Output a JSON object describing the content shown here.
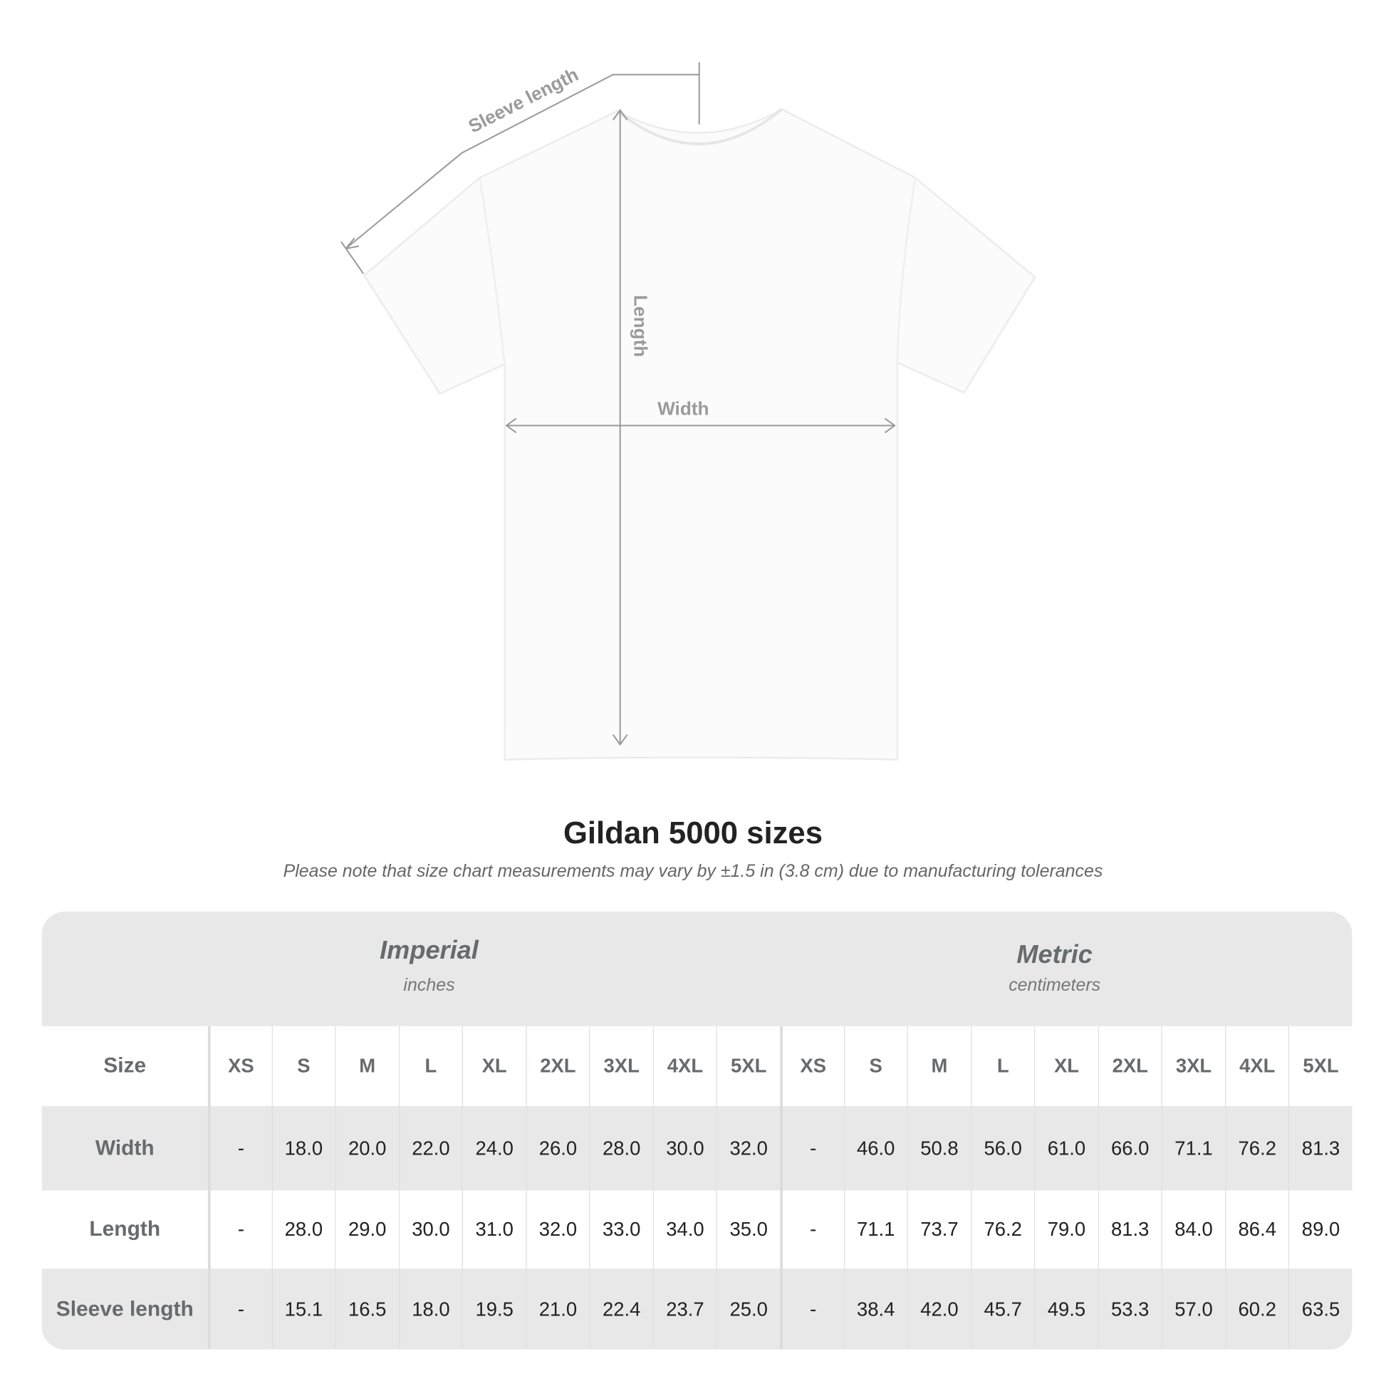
{
  "diagram": {
    "sleeve_label": "Sleeve length",
    "length_label": "Length",
    "width_label": "Width"
  },
  "title": "Gildan 5000 sizes",
  "subtitle": "Please note that size chart measurements may vary by ±1.5 in (3.8 cm) due to manufacturing tolerances",
  "table": {
    "imperial": {
      "title": "Imperial",
      "unit": "inches"
    },
    "metric": {
      "title": "Metric",
      "unit": "centimeters"
    },
    "size_label": "Size",
    "sizes": [
      "XS",
      "S",
      "M",
      "L",
      "XL",
      "2XL",
      "3XL",
      "4XL",
      "5XL"
    ],
    "rows": [
      {
        "label": "Width",
        "imperial": [
          "-",
          "18.0",
          "20.0",
          "22.0",
          "24.0",
          "26.0",
          "28.0",
          "30.0",
          "32.0"
        ],
        "metric": [
          "-",
          "46.0",
          "50.8",
          "56.0",
          "61.0",
          "66.0",
          "71.1",
          "76.2",
          "81.3"
        ]
      },
      {
        "label": "Length",
        "imperial": [
          "-",
          "28.0",
          "29.0",
          "30.0",
          "31.0",
          "32.0",
          "33.0",
          "34.0",
          "35.0"
        ],
        "metric": [
          "-",
          "71.1",
          "73.7",
          "76.2",
          "79.0",
          "81.3",
          "84.0",
          "86.4",
          "89.0"
        ]
      },
      {
        "label": "Sleeve length",
        "imperial": [
          "-",
          "15.1",
          "16.5",
          "18.0",
          "19.5",
          "21.0",
          "22.4",
          "23.7",
          "25.0"
        ],
        "metric": [
          "-",
          "38.4",
          "42.0",
          "45.7",
          "49.5",
          "53.3",
          "57.0",
          "60.2",
          "63.5"
        ]
      }
    ],
    "colors": {
      "band": "#e8e8e8",
      "header_text": "#666b6d",
      "value_text": "#222222"
    }
  }
}
